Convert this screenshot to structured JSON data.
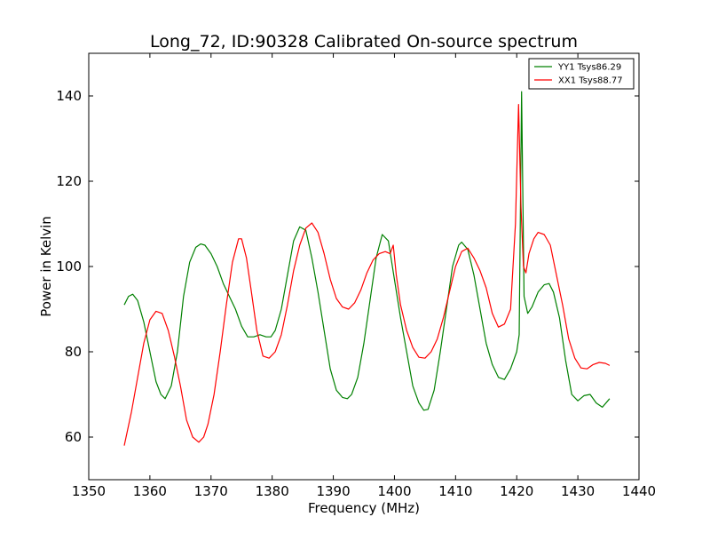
{
  "chart_data": {
    "type": "line",
    "title": "Long_72, ID:90328 Calibrated On-source spectrum",
    "xlabel": "Frequency (MHz)",
    "ylabel": "Power in Kelvin",
    "xlim": [
      1350,
      1440
    ],
    "ylim": [
      50,
      150
    ],
    "xticks": [
      1350,
      1360,
      1370,
      1380,
      1390,
      1400,
      1410,
      1420,
      1430,
      1440
    ],
    "yticks": [
      60,
      80,
      100,
      120,
      140
    ],
    "grid": false,
    "legend_position": "top-right",
    "series": [
      {
        "name": "YY1 Tsys86.29",
        "color": "#008000",
        "x": [
          1355.8,
          1356.5,
          1357.2,
          1358.0,
          1359.0,
          1360.0,
          1361.0,
          1361.8,
          1362.5,
          1363.5,
          1364.5,
          1365.5,
          1366.5,
          1367.5,
          1368.3,
          1369.0,
          1370.0,
          1371.0,
          1372.0,
          1373.0,
          1374.0,
          1375.0,
          1376.0,
          1377.0,
          1378.0,
          1379.0,
          1379.8,
          1380.5,
          1381.5,
          1382.5,
          1383.5,
          1384.5,
          1385.5,
          1386.5,
          1387.5,
          1388.5,
          1389.5,
          1390.5,
          1391.5,
          1392.3,
          1393.0,
          1394.0,
          1395.0,
          1396.0,
          1397.0,
          1398.0,
          1399.0,
          1400.0,
          1401.0,
          1402.0,
          1403.0,
          1404.0,
          1404.8,
          1405.5,
          1406.5,
          1407.5,
          1408.5,
          1409.5,
          1410.5,
          1411.0,
          1412.0,
          1413.0,
          1414.0,
          1415.0,
          1416.0,
          1417.0,
          1418.0,
          1419.0,
          1420.0,
          1420.4,
          1420.8,
          1421.2,
          1421.8,
          1422.5,
          1423.5,
          1424.5,
          1425.3,
          1426.0,
          1427.0,
          1428.0,
          1429.0,
          1430.0,
          1431.0,
          1432.0,
          1433.0,
          1434.0,
          1435.2
        ],
        "y": [
          91,
          93,
          93.5,
          92,
          87,
          80,
          73,
          70,
          69,
          72,
          80,
          93,
          101,
          104.5,
          105.3,
          105,
          103,
          100,
          96,
          93,
          90,
          86,
          83.5,
          83.5,
          84,
          83.5,
          83.5,
          85,
          90,
          98,
          106,
          109.3,
          108.5,
          102,
          94,
          85,
          76,
          71,
          69.3,
          69,
          70,
          74,
          82,
          92,
          102,
          107.5,
          106,
          97,
          88,
          80,
          72,
          68,
          66.3,
          66.5,
          71,
          80,
          90,
          100,
          105,
          105.7,
          104,
          98,
          90,
          82,
          77,
          74,
          73.5,
          76,
          80,
          84,
          141,
          93,
          89,
          90.5,
          94,
          95.7,
          96,
          94,
          88,
          78,
          70,
          68.5,
          69.7,
          70,
          68,
          67,
          69
        ]
      },
      {
        "name": "XX1 Tsys88.77",
        "color": "#ff0000",
        "x": [
          1355.8,
          1357.0,
          1358.0,
          1359.0,
          1360.0,
          1361.0,
          1362.0,
          1363.0,
          1364.0,
          1365.0,
          1366.0,
          1367.0,
          1368.0,
          1368.8,
          1369.5,
          1370.5,
          1371.5,
          1372.5,
          1373.5,
          1374.5,
          1375.0,
          1375.8,
          1376.5,
          1377.5,
          1378.5,
          1379.5,
          1380.5,
          1381.5,
          1382.5,
          1383.5,
          1384.5,
          1385.5,
          1386.5,
          1387.5,
          1388.5,
          1389.5,
          1390.5,
          1391.5,
          1392.5,
          1393.5,
          1394.5,
          1395.5,
          1396.5,
          1397.5,
          1398.5,
          1399.3,
          1399.8,
          1400.3,
          1401.0,
          1402.0,
          1403.0,
          1404.0,
          1405.0,
          1406.0,
          1407.0,
          1408.0,
          1409.0,
          1410.0,
          1411.0,
          1412.0,
          1413.0,
          1414.0,
          1415.0,
          1416.0,
          1417.0,
          1418.0,
          1419.0,
          1419.8,
          1420.3,
          1420.7,
          1421.1,
          1421.5,
          1422.0,
          1422.8,
          1423.5,
          1424.5,
          1425.5,
          1426.5,
          1427.5,
          1428.5,
          1429.5,
          1430.5,
          1431.5,
          1432.5,
          1433.5,
          1434.5,
          1435.2
        ],
        "y": [
          58,
          66,
          74,
          82,
          87.5,
          89.5,
          89,
          85,
          79,
          72,
          64,
          60,
          58.8,
          60,
          63,
          70,
          80,
          91,
          101,
          106.5,
          106.5,
          102,
          95,
          85,
          79,
          78.5,
          80,
          84,
          91,
          99,
          105,
          109,
          110.2,
          108,
          103,
          97,
          92.5,
          90.5,
          90,
          91.5,
          94.5,
          98.5,
          101.5,
          103,
          103.5,
          103,
          105,
          98,
          91,
          85,
          81,
          78.7,
          78.5,
          80,
          83,
          88,
          94,
          100,
          103.5,
          104.3,
          102,
          99,
          95,
          89,
          85.8,
          86.5,
          90,
          110,
          138,
          114,
          100,
          98.5,
          103,
          106.5,
          108,
          107.5,
          105,
          98,
          91,
          83,
          78.5,
          76.2,
          76,
          77,
          77.5,
          77.3,
          76.8
        ]
      }
    ]
  }
}
